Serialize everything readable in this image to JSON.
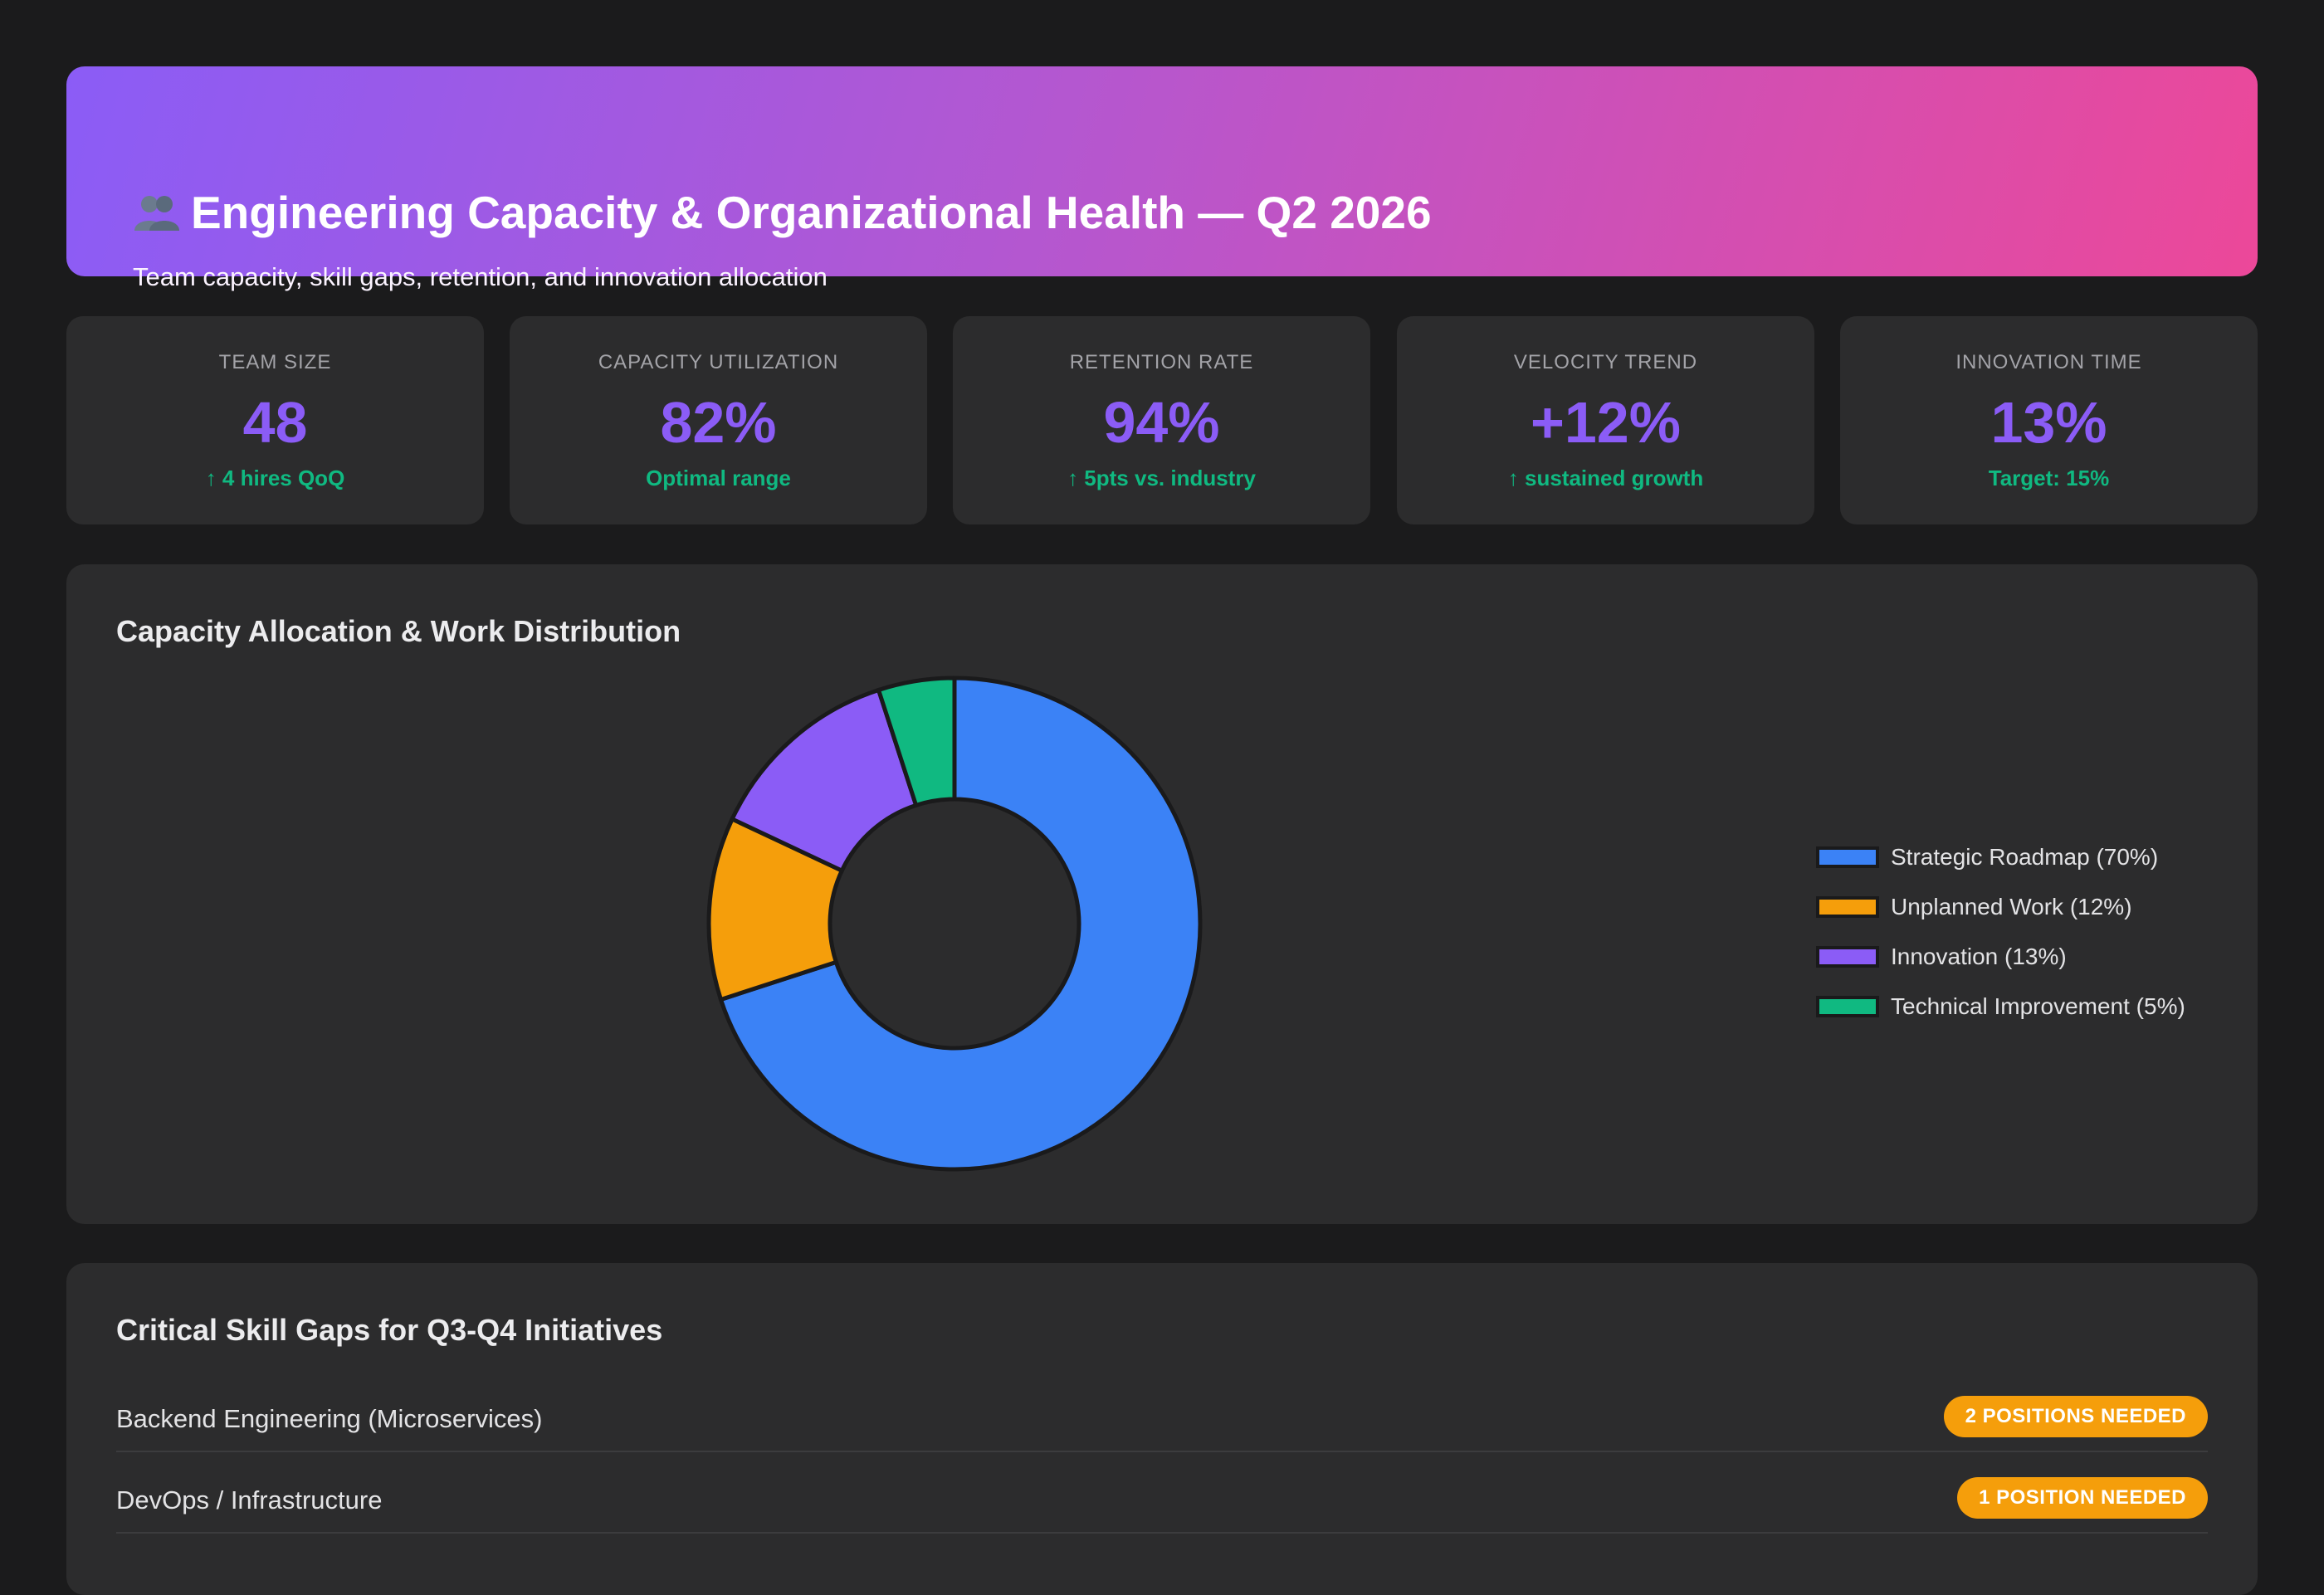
{
  "header": {
    "icon": "people-icon",
    "title": "Engineering Capacity & Organizational Health — Q2 2026",
    "subtitle": "Team capacity, skill gaps, retention, and innovation allocation"
  },
  "kpis": [
    {
      "label": "TEAM SIZE",
      "value": "48",
      "note": "↑ 4 hires QoQ"
    },
    {
      "label": "CAPACITY UTILIZATION",
      "value": "82%",
      "note": "Optimal range"
    },
    {
      "label": "RETENTION RATE",
      "value": "94%",
      "note": "↑ 5pts vs. industry"
    },
    {
      "label": "VELOCITY TREND",
      "value": "+12%",
      "note": "↑ sustained growth"
    },
    {
      "label": "INNOVATION TIME",
      "value": "13%",
      "note": "Target: 15%"
    }
  ],
  "capacity_panel": {
    "title": "Capacity Allocation & Work Distribution"
  },
  "chart_data": {
    "type": "pie",
    "subtype": "donut",
    "categories": [
      "Strategic Roadmap",
      "Unplanned Work",
      "Innovation",
      "Technical Improvement"
    ],
    "values": [
      70,
      12,
      13,
      5
    ],
    "legend_labels": [
      "Strategic Roadmap (70%)",
      "Unplanned Work (12%)",
      "Innovation (13%)",
      "Technical Improvement (5%)"
    ],
    "colors": [
      "#3b82f6",
      "#f59e0b",
      "#8b5cf6",
      "#10b981"
    ],
    "legend_position": "right"
  },
  "skills_panel": {
    "title": "Critical Skill Gaps for Q3-Q4 Initiatives",
    "rows": [
      {
        "name": "Backend Engineering (Microservices)",
        "badge": "2 POSITIONS NEEDED"
      },
      {
        "name": "DevOps / Infrastructure",
        "badge": "1 POSITION NEEDED"
      }
    ]
  },
  "colors": {
    "background": "#1b1b1c",
    "card": "#2c2c2d",
    "accent": "#8b5cf6",
    "positive": "#10b981",
    "warning": "#f59e0b"
  }
}
